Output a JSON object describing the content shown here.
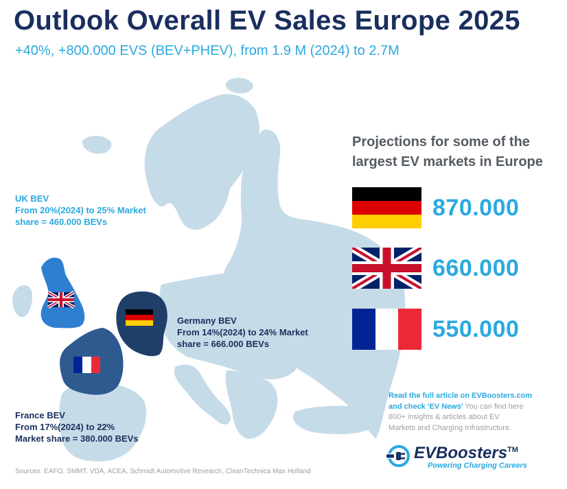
{
  "title": "Outlook Overall EV Sales Europe 2025",
  "subtitle": "+40%, +800.000 EVS (BEV+PHEV), from 1.9 M (2024) to 2.7M",
  "colors": {
    "navy": "#1a2f5e",
    "accent": "#2aa9e0",
    "map_land": "#c6dbe8",
    "highlight_country": "#1f3f68",
    "uk_fill": "#2f7fd0",
    "grey_text": "#555b62"
  },
  "map": {
    "uk": {
      "heading": "UK BEV",
      "lines": [
        "From 20%(2024) to 25% Market",
        "share = 460.000 BEVs"
      ]
    },
    "germany": {
      "heading": "Germany BEV",
      "lines": [
        "From 14%(2024) to 24% Market",
        "share =  666.000 BEVs"
      ]
    },
    "france": {
      "heading": "France BEV",
      "lines": [
        "From 17%(2024) to 22%",
        "Market share = 380.000 BEVs"
      ]
    }
  },
  "projections": {
    "heading": [
      "Projections for some of the",
      "largest EV markets in Europe"
    ],
    "items": [
      {
        "country": "Germany",
        "flag": "germany-flag",
        "value": "870.000"
      },
      {
        "country": "United Kingdom",
        "flag": "uk-flag",
        "value": "660.000"
      },
      {
        "country": "France",
        "flag": "france-flag",
        "value": "550.000"
      }
    ]
  },
  "article": {
    "highlight_lines": [
      "Read the full article on EVBoosters.com",
      "and check 'EV News'"
    ],
    "rest_inline": " You can find here",
    "lines": [
      "800+ insights & articles about EV",
      "Markets and Charging Infrastructure."
    ]
  },
  "logo": {
    "name": "EVBoosters",
    "trademark": "TM",
    "tagline": "Powering Charging Careers"
  },
  "sources": "Sources: EAFO, SMMT, VDA, ACEA, Schmidt Automotive Research, CleanTechnica Max Holland"
}
